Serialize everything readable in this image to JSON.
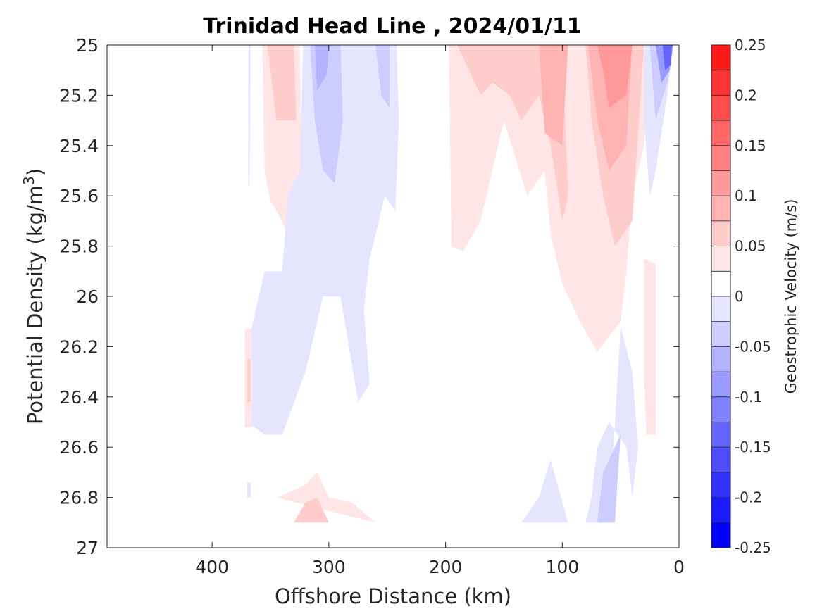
{
  "chart_data": {
    "type": "contourf",
    "title": "Trinidad Head Line , 2024/01/11",
    "xlabel": "Offshore Distance (km)",
    "ylabel_main": "Potential Density (kg/m",
    "ylabel_sup": "3",
    "ylabel_close": ")",
    "xlim": [
      490,
      0
    ],
    "ylim": [
      25,
      27
    ],
    "x_reversed": true,
    "y_reversed": true,
    "xticks": [
      400,
      300,
      200,
      100,
      0
    ],
    "xtick_labels": [
      "400",
      "300",
      "200",
      "100",
      "0"
    ],
    "yticks": [
      25,
      25.2,
      25.4,
      25.6,
      25.8,
      26,
      26.2,
      26.4,
      26.6,
      26.8,
      27
    ],
    "ytick_labels": [
      "25",
      "25.2",
      "25.4",
      "25.6",
      "25.8",
      "26",
      "26.2",
      "26.4",
      "26.6",
      "26.8",
      "27"
    ],
    "colorbar": {
      "label": "Geostrophic Velocity (m/s)",
      "clim": [
        -0.25,
        0.25
      ],
      "levels": [
        -0.25,
        -0.225,
        -0.2,
        -0.175,
        -0.15,
        -0.125,
        -0.1,
        -0.075,
        -0.05,
        -0.025,
        0,
        0.025,
        0.05,
        0.075,
        0.1,
        0.125,
        0.15,
        0.175,
        0.2,
        0.225,
        0.25
      ],
      "level_colors": [
        "#0000ff",
        "#1a1aff",
        "#3333ff",
        "#4d4dff",
        "#6666ff",
        "#8080ff",
        "#9999ff",
        "#b3b3ff",
        "#ccccff",
        "#e5e5ff",
        "#ffffff",
        "#ffe5e5",
        "#ffcccc",
        "#ffb3b3",
        "#ff9999",
        "#ff8080",
        "#ff6666",
        "#ff4d4d",
        "#ff3333",
        "#ff1a1a"
      ],
      "ticks": [
        0.25,
        0.2,
        0.15,
        0.1,
        0.05,
        0,
        -0.05,
        -0.1,
        -0.15,
        -0.2,
        -0.25
      ],
      "tick_labels": [
        "0.25",
        "0.2",
        "0.15",
        "0.1",
        "0.05",
        "0",
        "-0.05",
        "-0.1",
        "-0.15",
        "-0.2",
        "-0.25"
      ]
    },
    "regions": [
      {
        "v": -0.025,
        "pts": [
          [
            369,
            25
          ],
          [
            367,
            25
          ],
          [
            368,
            25.56
          ],
          [
            369,
            25.56
          ]
        ]
      },
      {
        "v": 0.025,
        "pts": [
          [
            357,
            25
          ],
          [
            325,
            25
          ],
          [
            323,
            25.5
          ],
          [
            330,
            25.82
          ],
          [
            340,
            25.7
          ],
          [
            350,
            25.62
          ],
          [
            355,
            25.5
          ]
        ]
      },
      {
        "v": 0.05,
        "pts": [
          [
            353,
            25
          ],
          [
            330,
            25
          ],
          [
            328,
            25.3
          ],
          [
            345,
            25.3
          ],
          [
            350,
            25.1
          ]
        ]
      },
      {
        "v": -0.025,
        "pts": [
          [
            322,
            25
          ],
          [
            242,
            25
          ],
          [
            240,
            25.3
          ],
          [
            243,
            25.66
          ],
          [
            252,
            25.6
          ],
          [
            265,
            25.85
          ],
          [
            270,
            26.05
          ],
          [
            265,
            26.35
          ],
          [
            275,
            26.42
          ],
          [
            290,
            26
          ],
          [
            305,
            26
          ],
          [
            320,
            26.3
          ],
          [
            340,
            26.55
          ],
          [
            355,
            26.55
          ],
          [
            370,
            26.5
          ],
          [
            370,
            26.2
          ],
          [
            355,
            25.9
          ],
          [
            340,
            25.9
          ],
          [
            335,
            25.6
          ],
          [
            325,
            25.5
          ]
        ]
      },
      {
        "v": -0.05,
        "pts": [
          [
            316,
            25
          ],
          [
            290,
            25
          ],
          [
            288,
            25.3
          ],
          [
            295,
            25.55
          ],
          [
            305,
            25.5
          ],
          [
            312,
            25.3
          ]
        ]
      },
      {
        "v": -0.05,
        "pts": [
          [
            260,
            25
          ],
          [
            248,
            25
          ],
          [
            248,
            25.25
          ],
          [
            255,
            25.2
          ]
        ]
      },
      {
        "v": -0.075,
        "pts": [
          [
            312,
            25
          ],
          [
            300,
            25
          ],
          [
            302,
            25.12
          ],
          [
            310,
            25.18
          ]
        ]
      },
      {
        "v": 0.025,
        "pts": [
          [
            372,
            26.13
          ],
          [
            366,
            26.13
          ],
          [
            366,
            26.52
          ],
          [
            372,
            26.52
          ]
        ]
      },
      {
        "v": 0.05,
        "pts": [
          [
            370,
            26.25
          ],
          [
            367,
            26.25
          ],
          [
            367,
            26.42
          ],
          [
            370,
            26.42
          ]
        ]
      },
      {
        "v": -0.025,
        "pts": [
          [
            370,
            26.74
          ],
          [
            367,
            26.74
          ],
          [
            367,
            26.8
          ],
          [
            370,
            26.8
          ]
        ]
      },
      {
        "v": 0.025,
        "pts": [
          [
            345,
            26.8
          ],
          [
            260,
            26.9
          ],
          [
            280,
            26.82
          ],
          [
            300,
            26.8
          ],
          [
            310,
            26.7
          ],
          [
            320,
            26.75
          ],
          [
            335,
            26.78
          ]
        ]
      },
      {
        "v": 0.05,
        "pts": [
          [
            330,
            26.9
          ],
          [
            300,
            26.9
          ],
          [
            310,
            26.8
          ],
          [
            320,
            26.82
          ]
        ]
      },
      {
        "v": 0.025,
        "pts": [
          [
            197,
            25
          ],
          [
            25,
            25
          ],
          [
            30,
            25.4
          ],
          [
            40,
            25.6
          ],
          [
            45,
            25.9
          ],
          [
            50,
            26.1
          ],
          [
            70,
            26.22
          ],
          [
            85,
            26.1
          ],
          [
            100,
            25.95
          ],
          [
            110,
            25.75
          ],
          [
            115,
            25.5
          ],
          [
            130,
            25.6
          ],
          [
            150,
            25.3
          ],
          [
            170,
            25.7
          ],
          [
            185,
            25.82
          ],
          [
            195,
            25.8
          ]
        ]
      },
      {
        "v": 0.05,
        "pts": [
          [
            190,
            25
          ],
          [
            100,
            25
          ],
          [
            95,
            25.6
          ],
          [
            100,
            25.7
          ],
          [
            110,
            25.4
          ],
          [
            120,
            25.2
          ],
          [
            135,
            25.3
          ],
          [
            145,
            25.2
          ],
          [
            160,
            25.15
          ],
          [
            170,
            25.2
          ],
          [
            180,
            25.1
          ]
        ]
      },
      {
        "v": 0.05,
        "pts": [
          [
            80,
            25
          ],
          [
            30,
            25
          ],
          [
            40,
            25.7
          ],
          [
            55,
            25.8
          ],
          [
            65,
            25.6
          ],
          [
            75,
            25.3
          ]
        ]
      },
      {
        "v": 0.075,
        "pts": [
          [
            120,
            25
          ],
          [
            95,
            25
          ],
          [
            100,
            25.4
          ],
          [
            115,
            25.35
          ]
        ]
      },
      {
        "v": 0.075,
        "pts": [
          [
            78,
            25
          ],
          [
            40,
            25
          ],
          [
            45,
            25.4
          ],
          [
            60,
            25.5
          ],
          [
            70,
            25.3
          ]
        ]
      },
      {
        "v": 0.1,
        "pts": [
          [
            70,
            25
          ],
          [
            40,
            25
          ],
          [
            45,
            25.2
          ],
          [
            60,
            25.25
          ],
          [
            65,
            25.1
          ]
        ]
      },
      {
        "v": -0.025,
        "pts": [
          [
            30,
            25
          ],
          [
            5,
            25
          ],
          [
            10,
            25.2
          ],
          [
            20,
            25.5
          ],
          [
            25,
            25.6
          ],
          [
            30,
            25.3
          ]
        ]
      },
      {
        "v": -0.05,
        "pts": [
          [
            25,
            25
          ],
          [
            5,
            25
          ],
          [
            10,
            25.15
          ],
          [
            20,
            25.3
          ]
        ]
      },
      {
        "v": -0.1,
        "pts": [
          [
            20,
            25
          ],
          [
            5,
            25
          ],
          [
            8,
            25.1
          ],
          [
            15,
            25.15
          ]
        ]
      },
      {
        "v": -0.15,
        "pts": [
          [
            14,
            25
          ],
          [
            6,
            25
          ],
          [
            7,
            25.08
          ],
          [
            12,
            25.1
          ]
        ]
      },
      {
        "v": 0.025,
        "pts": [
          [
            30,
            25.85
          ],
          [
            20,
            25.87
          ],
          [
            20,
            26.55
          ],
          [
            28,
            26.55
          ],
          [
            30,
            26.3
          ]
        ]
      },
      {
        "v": -0.025,
        "pts": [
          [
            50,
            26.12
          ],
          [
            60,
            26.9
          ],
          [
            80,
            26.9
          ],
          [
            75,
            26.8
          ],
          [
            70,
            26.6
          ],
          [
            60,
            26.5
          ],
          [
            45,
            26.6
          ],
          [
            40,
            26.8
          ],
          [
            35,
            26.6
          ],
          [
            40,
            26.3
          ]
        ]
      },
      {
        "v": -0.05,
        "pts": [
          [
            50,
            26.55
          ],
          [
            55,
            26.9
          ],
          [
            70,
            26.9
          ],
          [
            65,
            26.7
          ],
          [
            55,
            26.6
          ]
        ]
      },
      {
        "v": -0.025,
        "pts": [
          [
            110,
            26.65
          ],
          [
            95,
            26.9
          ],
          [
            135,
            26.9
          ],
          [
            120,
            26.8
          ]
        ]
      }
    ]
  }
}
